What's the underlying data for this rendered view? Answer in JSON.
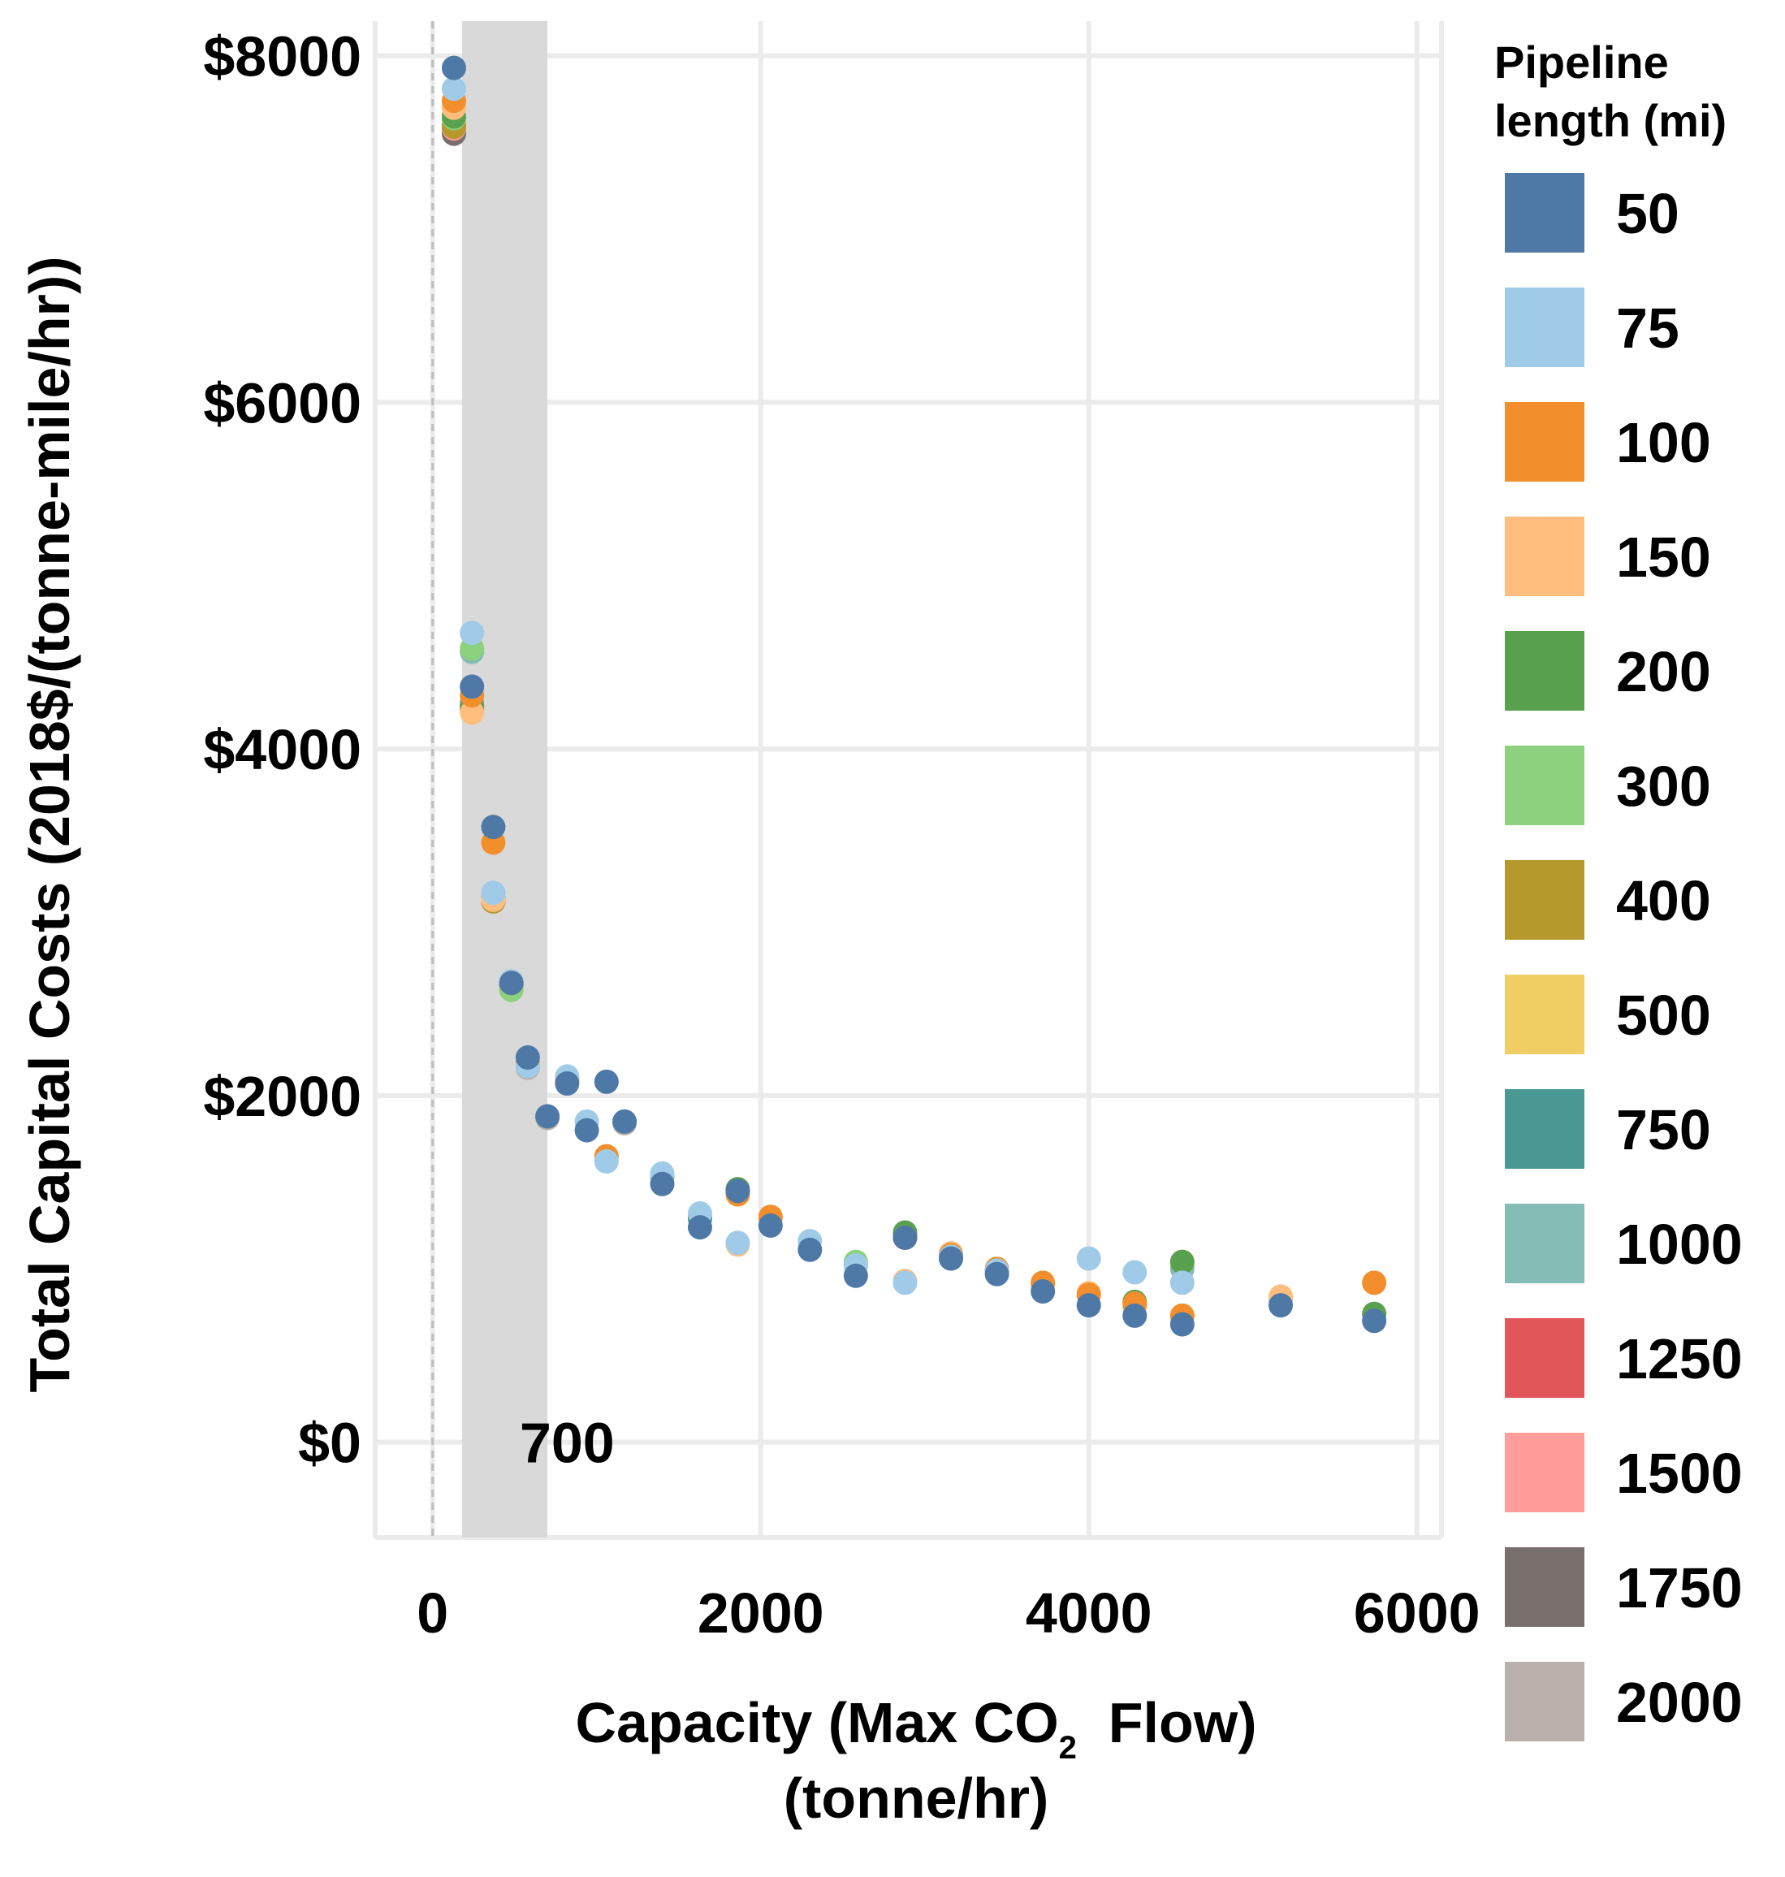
{
  "chart_data": {
    "type": "scatter",
    "title": "",
    "xlabel_parts": {
      "prefix": "Capacity (Max CO",
      "subscript": "2",
      "suffix": "  Flow)",
      "second_line": "(tonne/hr)"
    },
    "ylabel": "Total Capital Costs (2018$/(tonne-mile/hr))",
    "xlim": [
      -350,
      6150
    ],
    "ylim": [
      -550,
      8200
    ],
    "x_ticks": [
      {
        "value": 0,
        "label": "0"
      },
      {
        "value": 2000,
        "label": "2000"
      },
      {
        "value": 4000,
        "label": "4000"
      },
      {
        "value": 6000,
        "label": "6000"
      }
    ],
    "y_ticks": [
      {
        "value": 0,
        "label": "$0"
      },
      {
        "value": 2000,
        "label": "$2000"
      },
      {
        "value": 4000,
        "label": "$4000"
      },
      {
        "value": 6000,
        "label": "$6000"
      },
      {
        "value": 8000,
        "label": "$8000"
      }
    ],
    "x_gridlines": [
      0,
      2000,
      4000,
      6000
    ],
    "y_gridlines": [
      0,
      2000,
      4000,
      6000,
      8000
    ],
    "shaded_band": {
      "x_from": 180,
      "x_to": 700,
      "color": "#d9d9d9"
    },
    "reference_line_x": 0,
    "annotation": {
      "text": "700",
      "x": 820,
      "y": 0
    },
    "legend": {
      "title_lines": [
        "Pipeline",
        "length (mi)"
      ],
      "position": "right",
      "entries": [
        {
          "label": "50",
          "color": "#4e79a7"
        },
        {
          "label": "75",
          "color": "#a0cbe8"
        },
        {
          "label": "100",
          "color": "#f28e2b"
        },
        {
          "label": "150",
          "color": "#ffbe7d"
        },
        {
          "label": "200",
          "color": "#59a14f"
        },
        {
          "label": "300",
          "color": "#8cd17d"
        },
        {
          "label": "400",
          "color": "#b6992d"
        },
        {
          "label": "500",
          "color": "#f1ce63"
        },
        {
          "label": "750",
          "color": "#499894"
        },
        {
          "label": "1000",
          "color": "#86bcb6"
        },
        {
          "label": "1250",
          "color": "#e15759"
        },
        {
          "label": "1500",
          "color": "#ff9d9a"
        },
        {
          "label": "1750",
          "color": "#79706e"
        },
        {
          "label": "2000",
          "color": "#bab0ac"
        }
      ]
    },
    "series": [
      {
        "name": "2000",
        "color": "#bab0ac",
        "points": [
          [
            130,
            7570
          ],
          [
            240,
            4270
          ],
          [
            370,
            3120
          ],
          [
            480,
            2640
          ],
          [
            580,
            2160
          ],
          [
            700,
            1870
          ],
          [
            1170,
            1840
          ],
          [
            2880,
            1180
          ],
          [
            5170,
            820
          ]
        ]
      },
      {
        "name": "1750",
        "color": "#79706e",
        "points": [
          [
            130,
            7550
          ],
          [
            240,
            4250
          ],
          [
            480,
            2640
          ]
        ]
      },
      {
        "name": "1500",
        "color": "#ff9d9a",
        "points": [
          [
            130,
            7580
          ]
        ]
      },
      {
        "name": "1250",
        "color": "#e15759",
        "points": [
          [
            130,
            7590
          ]
        ]
      },
      {
        "name": "1000",
        "color": "#86bcb6",
        "points": [
          [
            130,
            7610
          ],
          [
            240,
            4560
          ],
          [
            480,
            2650
          ],
          [
            1400,
            1530
          ],
          [
            1630,
            1300
          ],
          [
            2580,
            1020
          ],
          [
            4570,
            1000
          ]
        ]
      },
      {
        "name": "750",
        "color": "#499894",
        "points": [
          [
            130,
            7600
          ],
          [
            240,
            4250
          ],
          [
            1630,
            1290
          ]
        ]
      },
      {
        "name": "500",
        "color": "#f1ce63",
        "points": [
          [
            130,
            7620
          ],
          [
            240,
            4220
          ],
          [
            1170,
            1850
          ]
        ]
      },
      {
        "name": "400",
        "color": "#b6992d",
        "points": [
          [
            130,
            7590
          ],
          [
            240,
            4240
          ],
          [
            370,
            3120
          ],
          [
            480,
            2620
          ],
          [
            1860,
            1440
          ],
          [
            2880,
            1200
          ],
          [
            4570,
            1040
          ]
        ]
      },
      {
        "name": "300",
        "color": "#8cd17d",
        "points": [
          [
            130,
            7640
          ],
          [
            240,
            4580
          ],
          [
            480,
            2610
          ],
          [
            2580,
            1040
          ],
          [
            4570,
            730
          ],
          [
            5740,
            740
          ]
        ]
      },
      {
        "name": "200",
        "color": "#59a14f",
        "points": [
          [
            130,
            7650
          ],
          [
            240,
            4230
          ],
          [
            370,
            3140
          ],
          [
            1860,
            1460
          ],
          [
            2880,
            1210
          ],
          [
            4280,
            810
          ],
          [
            4570,
            1040
          ],
          [
            5740,
            740
          ]
        ]
      },
      {
        "name": "150",
        "color": "#ffbe7d",
        "points": [
          [
            130,
            7700
          ],
          [
            240,
            4210
          ],
          [
            370,
            3130
          ],
          [
            580,
            2190
          ],
          [
            820,
            2100
          ],
          [
            1060,
            1640
          ],
          [
            1860,
            1140
          ],
          [
            2060,
            1290
          ],
          [
            2880,
            930
          ],
          [
            3160,
            1090
          ],
          [
            3440,
            990
          ],
          [
            3720,
            910
          ],
          [
            4000,
            860
          ],
          [
            4280,
            780
          ],
          [
            5170,
            840
          ]
        ]
      },
      {
        "name": "100",
        "color": "#f28e2b",
        "points": [
          [
            130,
            7740
          ],
          [
            240,
            4310
          ],
          [
            370,
            3460
          ],
          [
            480,
            2650
          ],
          [
            580,
            2180
          ],
          [
            820,
            2090
          ],
          [
            1060,
            1650
          ],
          [
            1860,
            1430
          ],
          [
            2060,
            1300
          ],
          [
            2880,
            1180
          ],
          [
            3160,
            1080
          ],
          [
            3440,
            1000
          ],
          [
            3720,
            920
          ],
          [
            4000,
            850
          ],
          [
            4280,
            800
          ],
          [
            4570,
            730
          ],
          [
            5740,
            920
          ]
        ]
      },
      {
        "name": "75",
        "color": "#a0cbe8",
        "points": [
          [
            130,
            7810
          ],
          [
            240,
            4670
          ],
          [
            370,
            3170
          ],
          [
            480,
            2660
          ],
          [
            580,
            2170
          ],
          [
            820,
            2110
          ],
          [
            940,
            1850
          ],
          [
            1060,
            1620
          ],
          [
            1400,
            1550
          ],
          [
            1630,
            1320
          ],
          [
            1860,
            1150
          ],
          [
            2300,
            1160
          ],
          [
            2580,
            1020
          ],
          [
            2880,
            920
          ],
          [
            3160,
            1070
          ],
          [
            3440,
            990
          ],
          [
            4000,
            1060
          ],
          [
            4280,
            980
          ],
          [
            4570,
            920
          ]
        ]
      },
      {
        "name": "50",
        "color": "#4e79a7",
        "points": [
          [
            130,
            7930
          ],
          [
            240,
            4360
          ],
          [
            370,
            3550
          ],
          [
            480,
            2650
          ],
          [
            580,
            2220
          ],
          [
            700,
            1880
          ],
          [
            820,
            2070
          ],
          [
            940,
            1800
          ],
          [
            1060,
            2080
          ],
          [
            1170,
            1850
          ],
          [
            1400,
            1490
          ],
          [
            1630,
            1240
          ],
          [
            1860,
            1450
          ],
          [
            2060,
            1250
          ],
          [
            2300,
            1110
          ],
          [
            2580,
            960
          ],
          [
            2880,
            1180
          ],
          [
            3160,
            1060
          ],
          [
            3440,
            970
          ],
          [
            3720,
            870
          ],
          [
            4000,
            790
          ],
          [
            4280,
            730
          ],
          [
            4570,
            680
          ],
          [
            5170,
            790
          ],
          [
            5740,
            700
          ]
        ]
      }
    ]
  }
}
